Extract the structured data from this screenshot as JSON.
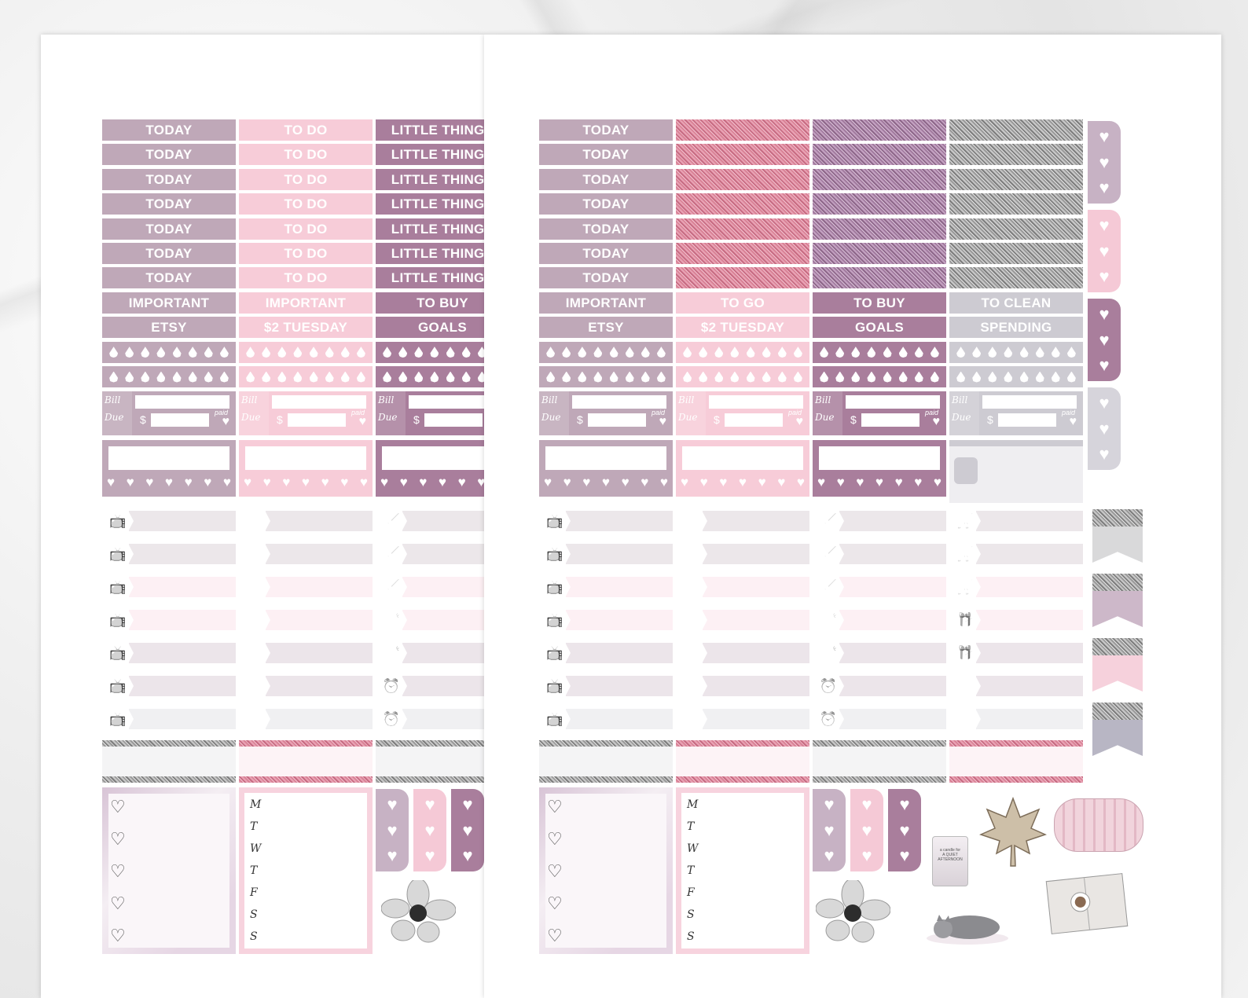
{
  "sheet1": {
    "cols": [
      {
        "id": "a",
        "headers": [
          "TODAY",
          "TODAY",
          "TODAY",
          "TODAY",
          "TODAY",
          "TODAY",
          "TODAY",
          "IMPORTANT",
          "ETSY"
        ],
        "colors": [
          "c-mauve",
          "c-mauve",
          "c-mauve",
          "c-mauve",
          "c-mauve",
          "c-mauve",
          "c-mauve",
          "c-mauve",
          "c-mauve"
        ]
      },
      {
        "id": "b",
        "headers": [
          "TO DO",
          "TO DO",
          "TO DO",
          "TO DO",
          "TO DO",
          "TO DO",
          "TO DO",
          "IMPORTANT",
          "$2 TUESDAY"
        ],
        "colors": [
          "c-pink",
          "c-pink",
          "c-pink",
          "c-pink",
          "c-pink",
          "c-pink",
          "c-pink",
          "c-pink",
          "c-pink"
        ]
      },
      {
        "id": "c",
        "headers": [
          "LITTLE THINGS",
          "LITTLE THINGS",
          "LITTLE THINGS",
          "LITTLE THINGS",
          "LITTLE THINGS",
          "LITTLE THINGS",
          "LITTLE THINGS",
          "TO BUY",
          "GOALS"
        ],
        "colors": [
          "c-plum",
          "c-plum",
          "c-plum",
          "c-plum",
          "c-plum",
          "c-plum",
          "c-plum",
          "c-plum",
          "c-plum"
        ]
      }
    ]
  },
  "sheet2": {
    "cols": [
      {
        "id": "d",
        "headers": [
          "TODAY",
          "TODAY",
          "TODAY",
          "TODAY",
          "TODAY",
          "TODAY",
          "TODAY",
          "IMPORTANT",
          "ETSY"
        ],
        "colors": [
          "c-mauve",
          "c-mauve",
          "c-mauve",
          "c-mauve",
          "c-mauve",
          "c-mauve",
          "c-mauve",
          "c-mauve",
          "c-mauve"
        ]
      },
      {
        "id": "e",
        "headers": [
          "",
          "",
          "",
          "",
          "",
          "",
          "",
          "TO GO",
          "$2 TUESDAY"
        ],
        "colors": [
          "glit-pink",
          "glit-pink",
          "glit-pink",
          "glit-pink",
          "glit-pink",
          "glit-pink",
          "glit-pink",
          "c-pink",
          "c-pink"
        ]
      },
      {
        "id": "f",
        "headers": [
          "",
          "",
          "",
          "",
          "",
          "",
          "",
          "TO BUY",
          "GOALS"
        ],
        "colors": [
          "glit-purple",
          "glit-purple",
          "glit-purple",
          "glit-purple",
          "glit-purple",
          "glit-purple",
          "glit-purple",
          "c-plum",
          "c-plum"
        ]
      },
      {
        "id": "g",
        "headers": [
          "",
          "",
          "",
          "",
          "",
          "",
          "",
          "TO CLEAN",
          "SPENDING"
        ],
        "colors": [
          "glit-silver",
          "glit-silver",
          "glit-silver",
          "glit-silver",
          "glit-silver",
          "glit-silver",
          "glit-silver",
          "c-grey",
          "c-grey"
        ]
      }
    ]
  },
  "bill": {
    "word1": "Bill",
    "word2": "Due",
    "currency": "$",
    "paid": "paid"
  },
  "weekdays": [
    "M",
    "T",
    "W",
    "T",
    "F",
    "S",
    "S"
  ],
  "icons": {
    "tv": "tv-icon",
    "dinner": "plate-icon",
    "chores": "chores-icon",
    "cart": "cart-icon",
    "gift": "gift-icon",
    "cheers": "glasses-icon",
    "alarm": "alarm-icon",
    "heart": "heart-icon"
  },
  "colors": {
    "mauve": "#bfa8b8",
    "pink": "#f7ccd8",
    "plum": "#a97e9c",
    "grey": "#cdcbd2"
  },
  "candle": {
    "line1": "a candle for",
    "line2": "A QUIET AFTERNOON"
  }
}
